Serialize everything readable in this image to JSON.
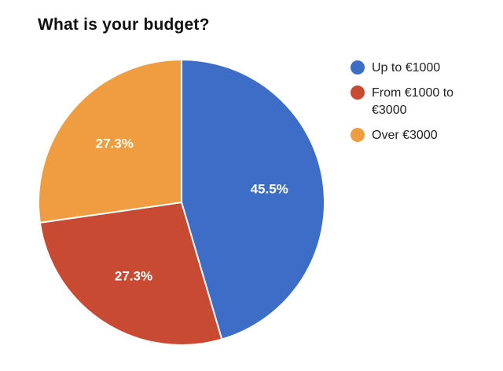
{
  "chart_data": {
    "type": "pie",
    "title": "What is your budget?",
    "legend_position": "right",
    "slices": [
      {
        "name": "Up to €1000",
        "value": 45.5,
        "label": "45.5%",
        "color": "#3d6dc6"
      },
      {
        "name": "From €1000 to €3000",
        "value": 27.3,
        "label": "27.3%",
        "color": "#c94a33"
      },
      {
        "name": "Over €3000",
        "value": 27.3,
        "label": "27.3%",
        "color": "#ef9d40"
      }
    ]
  }
}
